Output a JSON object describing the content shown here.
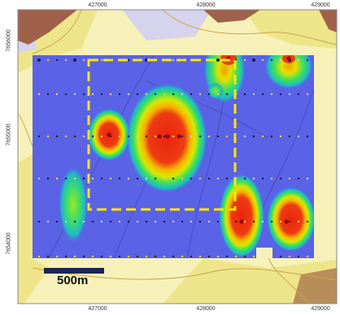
{
  "axes": {
    "x_ticks_top": [
      "427000",
      "428000",
      "429000"
    ],
    "x_ticks_bottom": [
      "427000",
      "428000",
      "429000"
    ],
    "y_ticks_left": [
      "7656000",
      "7655000",
      "7654000"
    ]
  },
  "scale_bar": {
    "label": "500m"
  },
  "colors": {
    "background_pale": "#f6f1b8",
    "background_yellow": "#eee58a",
    "background_lavender": "#d6d3ec",
    "geology_brown": "#a0614a",
    "survey_blue": "#5a62e6",
    "anomaly_red": "#ee2a10",
    "highlight_box": "#ffe600"
  }
}
